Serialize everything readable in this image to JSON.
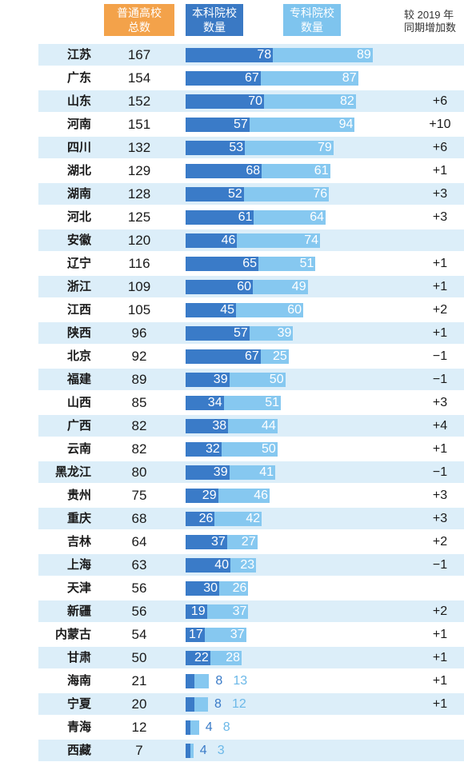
{
  "header": {
    "total_line1": "普通高校",
    "total_line2": "总数",
    "bach_line1": "本科院校",
    "bach_line2": "数量",
    "voc_line1": "专科院校",
    "voc_line2": "数量",
    "change_line1": "较 2019 年",
    "change_line2": "同期增加数"
  },
  "colors": {
    "total_header": "#f3a24a",
    "bachelor": "#3a7bc8",
    "vocational": "#86c8f0",
    "stripe": "#dceef9"
  },
  "chart_data": {
    "type": "bar",
    "stacked": true,
    "orientation": "horizontal",
    "categories": [
      "江苏",
      "广东",
      "山东",
      "河南",
      "四川",
      "湖北",
      "湖南",
      "河北",
      "安徽",
      "辽宁",
      "浙江",
      "江西",
      "陕西",
      "北京",
      "福建",
      "山西",
      "广西",
      "云南",
      "黑龙江",
      "贵州",
      "重庆",
      "吉林",
      "上海",
      "天津",
      "新疆",
      "内蒙古",
      "甘肃",
      "海南",
      "宁夏",
      "青海",
      "西藏"
    ],
    "totals": [
      167,
      154,
      152,
      151,
      132,
      129,
      128,
      125,
      120,
      116,
      109,
      105,
      96,
      92,
      89,
      85,
      82,
      82,
      80,
      75,
      68,
      64,
      63,
      56,
      56,
      54,
      50,
      21,
      20,
      12,
      7
    ],
    "series": [
      {
        "name": "本科院校数量",
        "values": [
          78,
          67,
          70,
          57,
          53,
          68,
          52,
          61,
          46,
          65,
          60,
          45,
          57,
          67,
          39,
          34,
          38,
          32,
          39,
          29,
          26,
          37,
          40,
          30,
          19,
          17,
          22,
          8,
          8,
          4,
          4
        ]
      },
      {
        "name": "专科院校数量",
        "values": [
          89,
          87,
          82,
          94,
          79,
          61,
          76,
          64,
          74,
          51,
          49,
          60,
          39,
          25,
          50,
          51,
          44,
          50,
          41,
          46,
          42,
          27,
          23,
          26,
          37,
          37,
          28,
          13,
          12,
          8,
          3
        ]
      }
    ],
    "change": [
      "",
      "",
      "+6",
      "+10",
      "+6",
      "+1",
      "+3",
      "+3",
      "",
      "+1",
      "+1",
      "+2",
      "+1",
      "−1",
      "−1",
      "+3",
      "+4",
      "+1",
      "−1",
      "+3",
      "+3",
      "+2",
      "−1",
      "",
      "+2",
      "+1",
      "+1",
      "+1",
      "+1",
      "",
      ""
    ]
  }
}
